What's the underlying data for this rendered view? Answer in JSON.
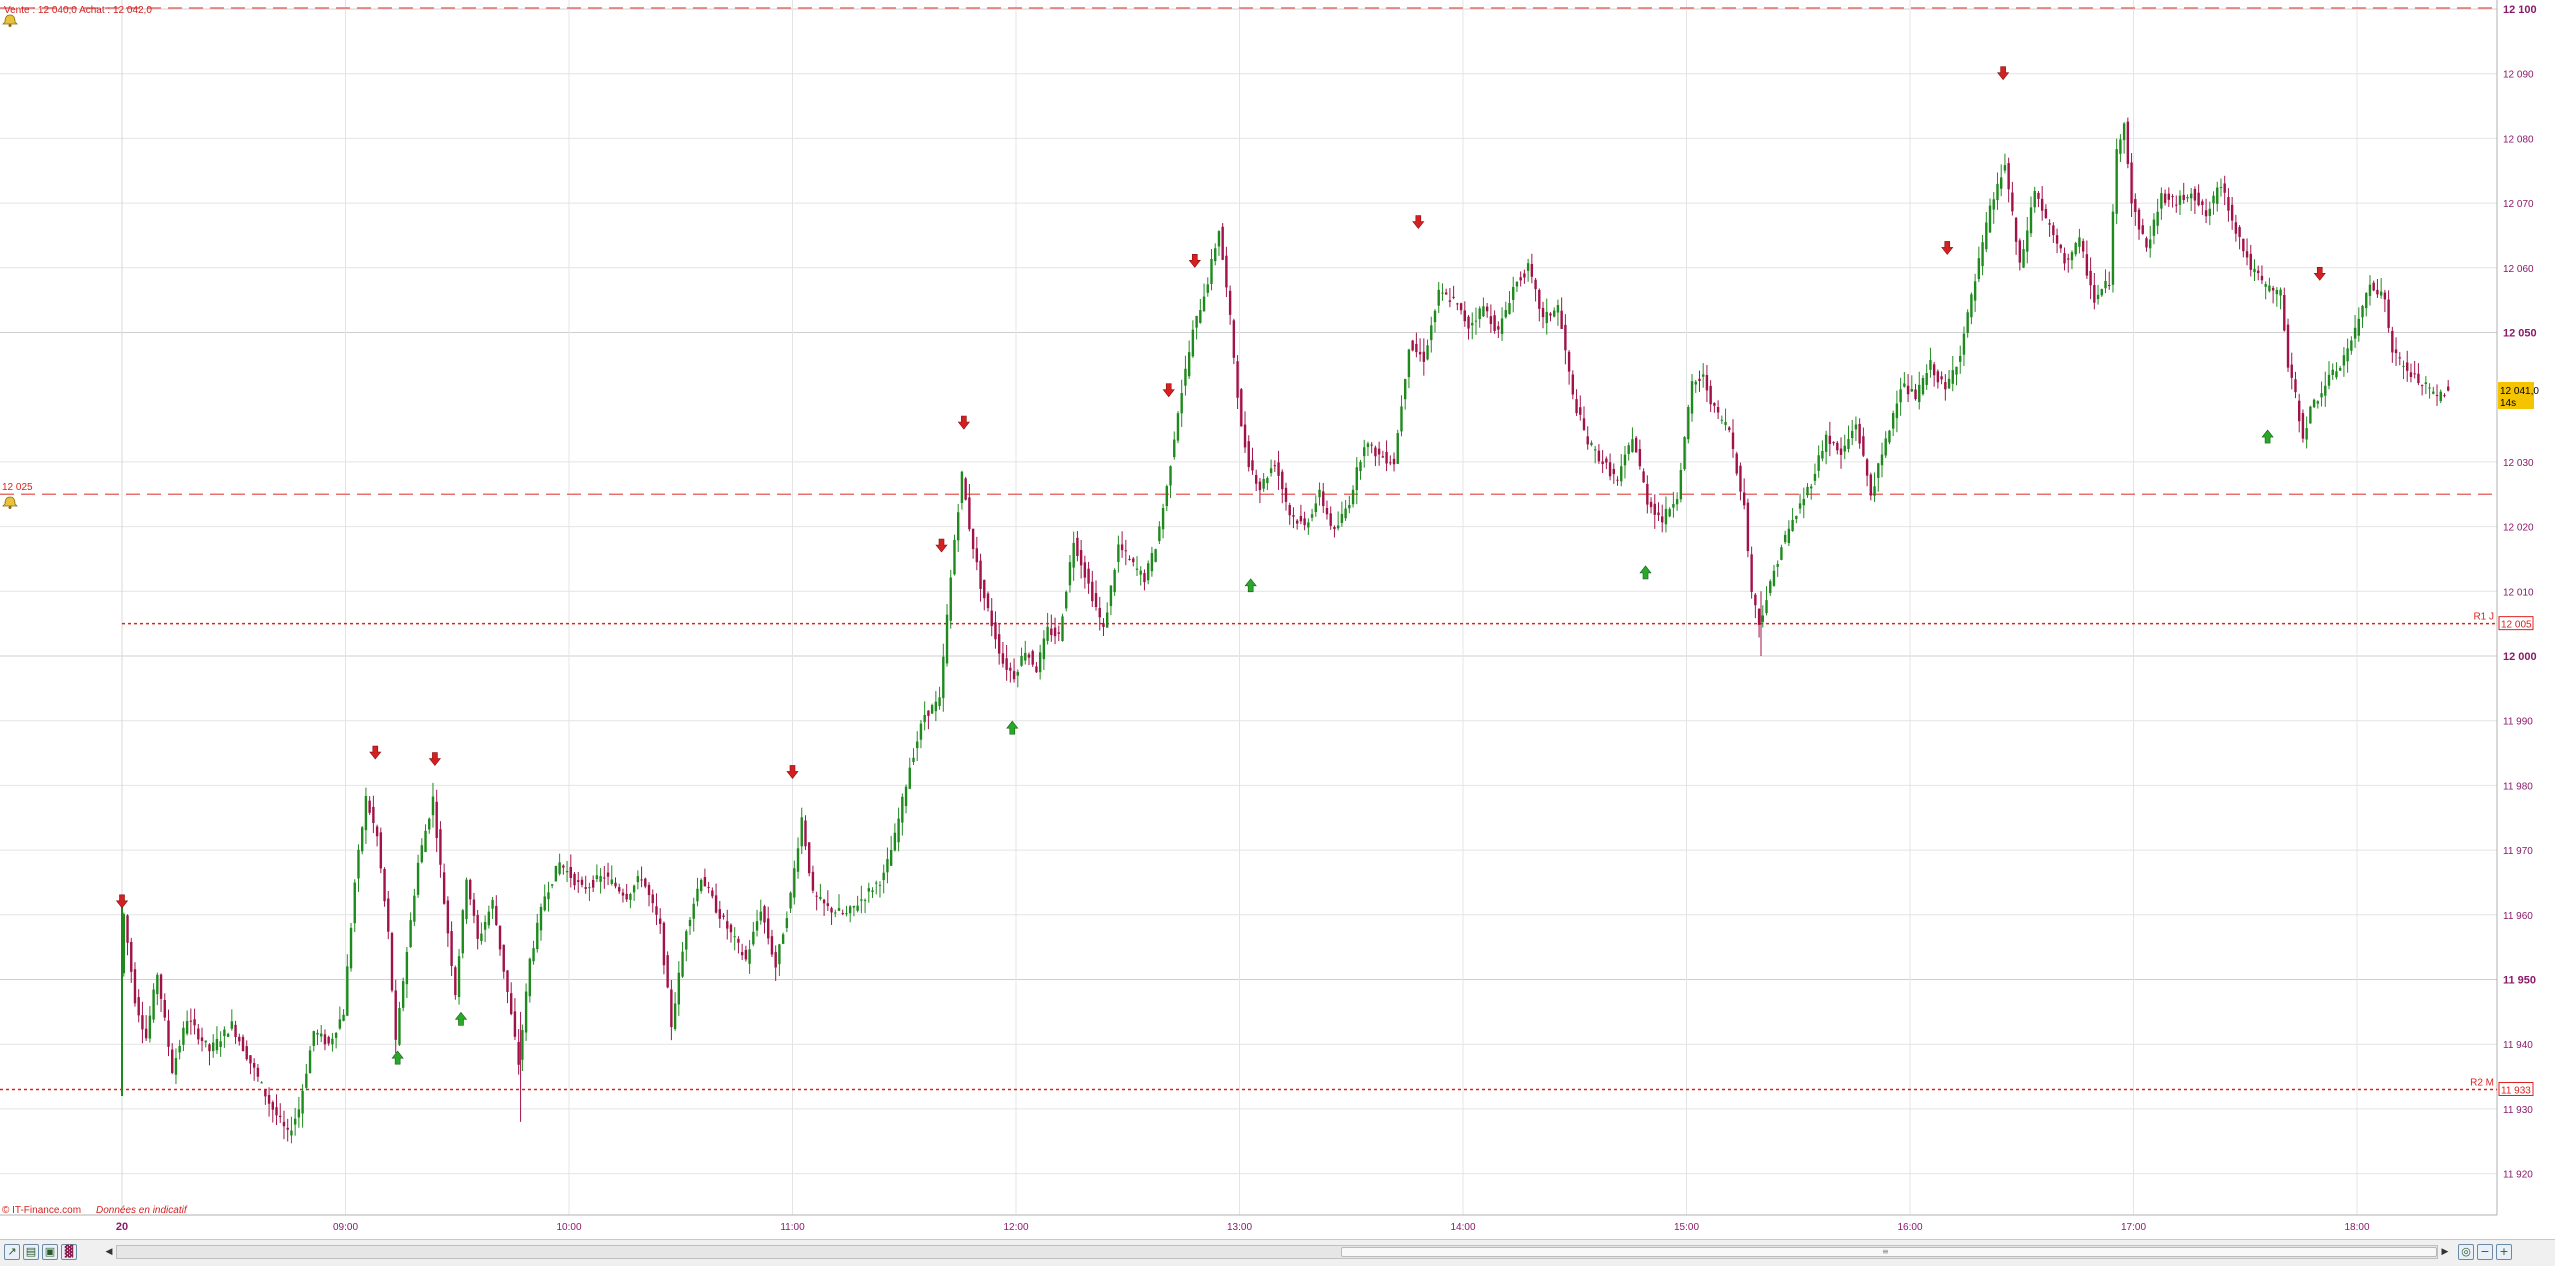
{
  "header": {
    "quote_text": "Vente : 12 040,0 Achat : 12 042,0"
  },
  "footer": {
    "source": "© IT-Finance.com",
    "note": "Données en indicatif"
  },
  "price_tag": {
    "value": "12 041,0",
    "countdown": "14s"
  },
  "alert_level": {
    "label": "12 025",
    "value": 12025
  },
  "levels": [
    {
      "name": "R1 J",
      "value": 12005,
      "tag": "12 005"
    },
    {
      "name": "R2 M",
      "value": 11933,
      "tag": "11 933"
    }
  ],
  "colors": {
    "up_candle": "#1e8a1e",
    "down_candle": "#a01248",
    "grid": "#e4e4e4",
    "axis_text": "#8b1a6b",
    "level_line": "#e0201c",
    "alert_line": "#e8706c",
    "arrow_sell": "#d42020",
    "arrow_buy": "#2aa82a",
    "price_tag_bg": "#f5c400"
  },
  "toolbar": {
    "icons": [
      "chart-type-icon",
      "save-icon",
      "print-icon",
      "indicators-icon"
    ],
    "zoom_icons": [
      "zoom-fit-icon",
      "zoom-out-icon",
      "zoom-in-icon"
    ]
  },
  "chart_data": {
    "type": "candlestick",
    "xlabel": "",
    "ylabel": "",
    "date_label": "20",
    "xlim": [
      "08:00",
      "18:40"
    ],
    "ylim": [
      11915,
      12100
    ],
    "grid": true,
    "x_ticks": [
      "09:00",
      "10:00",
      "11:00",
      "12:00",
      "13:00",
      "14:00",
      "15:00",
      "16:00",
      "17:00",
      "18:00"
    ],
    "y_ticks": [
      {
        "value": 12100,
        "label": "12 100",
        "major": true
      },
      {
        "value": 12090,
        "label": "12 090",
        "major": false
      },
      {
        "value": 12080,
        "label": "12 080",
        "major": false
      },
      {
        "value": 12070,
        "label": "12 070",
        "major": false
      },
      {
        "value": 12060,
        "label": "12 060",
        "major": false
      },
      {
        "value": 12050,
        "label": "12 050",
        "major": true
      },
      {
        "value": 12030,
        "label": "12 030",
        "major": false
      },
      {
        "value": 12020,
        "label": "12 020",
        "major": false
      },
      {
        "value": 12010,
        "label": "12 010",
        "major": false
      },
      {
        "value": 12000,
        "label": "12 000",
        "major": true
      },
      {
        "value": 11990,
        "label": "11 990",
        "major": false
      },
      {
        "value": 11980,
        "label": "11 980",
        "major": false
      },
      {
        "value": 11970,
        "label": "11 970",
        "major": false
      },
      {
        "value": 11960,
        "label": "11 960",
        "major": false
      },
      {
        "value": 11950,
        "label": "11 950",
        "major": true
      },
      {
        "value": 11940,
        "label": "11 940",
        "major": false
      },
      {
        "value": 11930,
        "label": "11 930",
        "major": false
      },
      {
        "value": 11920,
        "label": "11 920",
        "major": false
      }
    ],
    "price_path": [
      [
        "08:00",
        11951
      ],
      [
        "08:01",
        11960
      ],
      [
        "08:04",
        11947
      ],
      [
        "08:07",
        11941
      ],
      [
        "08:10",
        11951
      ],
      [
        "08:14",
        11936
      ],
      [
        "08:18",
        11944
      ],
      [
        "08:24",
        11939
      ],
      [
        "08:30",
        11943
      ],
      [
        "08:36",
        11936
      ],
      [
        "08:40",
        11931
      ],
      [
        "08:45",
        11926
      ],
      [
        "08:48",
        11930
      ],
      [
        "08:52",
        11942
      ],
      [
        "08:56",
        11940
      ],
      [
        "09:00",
        11945
      ],
      [
        "09:03",
        11965
      ],
      [
        "09:06",
        11978
      ],
      [
        "09:09",
        11972
      ],
      [
        "09:12",
        11957
      ],
      [
        "09:14",
        11940
      ],
      [
        "09:16",
        11950
      ],
      [
        "09:20",
        11968
      ],
      [
        "09:24",
        11978
      ],
      [
        "09:27",
        11962
      ],
      [
        "09:30",
        11948
      ],
      [
        "09:33",
        11966
      ],
      [
        "09:36",
        11956
      ],
      [
        "09:40",
        11962
      ],
      [
        "09:44",
        11948
      ],
      [
        "09:47",
        11937
      ],
      [
        "09:50",
        11953
      ],
      [
        "09:54",
        11963
      ],
      [
        "09:58",
        11968
      ],
      [
        "10:04",
        11964
      ],
      [
        "10:10",
        11966
      ],
      [
        "10:16",
        11963
      ],
      [
        "10:20",
        11966
      ],
      [
        "10:25",
        11958
      ],
      [
        "10:28",
        11943
      ],
      [
        "10:32",
        11958
      ],
      [
        "10:36",
        11966
      ],
      [
        "10:40",
        11961
      ],
      [
        "10:44",
        11957
      ],
      [
        "10:48",
        11953
      ],
      [
        "10:52",
        11961
      ],
      [
        "10:56",
        11952
      ],
      [
        "11:00",
        11963
      ],
      [
        "11:03",
        11975
      ],
      [
        "11:06",
        11963
      ],
      [
        "11:10",
        11961
      ],
      [
        "11:15",
        11960
      ],
      [
        "11:20",
        11963
      ],
      [
        "11:25",
        11966
      ],
      [
        "11:28",
        11972
      ],
      [
        "11:32",
        11983
      ],
      [
        "11:36",
        11991
      ],
      [
        "11:40",
        11993
      ],
      [
        "11:42",
        12006
      ],
      [
        "11:44",
        12018
      ],
      [
        "11:46",
        12028
      ],
      [
        "11:48",
        12020
      ],
      [
        "11:51",
        12011
      ],
      [
        "11:54",
        12005
      ],
      [
        "11:57",
        11999
      ],
      [
        "12:00",
        11997
      ],
      [
        "12:03",
        12001
      ],
      [
        "12:06",
        11998
      ],
      [
        "12:09",
        12004
      ],
      [
        "12:12",
        12003
      ],
      [
        "12:16",
        12018
      ],
      [
        "12:20",
        12011
      ],
      [
        "12:24",
        12004
      ],
      [
        "12:28",
        12017
      ],
      [
        "12:32",
        12014
      ],
      [
        "12:35",
        12012
      ],
      [
        "12:38",
        12017
      ],
      [
        "12:41",
        12026
      ],
      [
        "12:44",
        12038
      ],
      [
        "12:48",
        12050
      ],
      [
        "12:52",
        12058
      ],
      [
        "12:55",
        12066
      ],
      [
        "12:58",
        12052
      ],
      [
        "13:01",
        12035
      ],
      [
        "13:03",
        12030
      ],
      [
        "13:06",
        12026
      ],
      [
        "13:10",
        12030
      ],
      [
        "13:14",
        12022
      ],
      [
        "13:18",
        12020
      ],
      [
        "13:22",
        12025
      ],
      [
        "13:26",
        12019
      ],
      [
        "13:30",
        12024
      ],
      [
        "13:34",
        12033
      ],
      [
        "13:38",
        12031
      ],
      [
        "13:42",
        12030
      ],
      [
        "13:46",
        12048
      ],
      [
        "13:50",
        12046
      ],
      [
        "13:54",
        12056
      ],
      [
        "13:58",
        12055
      ],
      [
        "14:02",
        12051
      ],
      [
        "14:06",
        12054
      ],
      [
        "14:10",
        12050
      ],
      [
        "14:14",
        12057
      ],
      [
        "14:18",
        12060
      ],
      [
        "14:22",
        12052
      ],
      [
        "14:26",
        12054
      ],
      [
        "14:30",
        12040
      ],
      [
        "14:34",
        12033
      ],
      [
        "14:38",
        12030
      ],
      [
        "14:42",
        12027
      ],
      [
        "14:46",
        12034
      ],
      [
        "14:50",
        12024
      ],
      [
        "14:54",
        12021
      ],
      [
        "14:58",
        12025
      ],
      [
        "15:02",
        12042
      ],
      [
        "15:05",
        12043
      ],
      [
        "15:08",
        12038
      ],
      [
        "15:12",
        12035
      ],
      [
        "15:16",
        12023
      ],
      [
        "15:18",
        12010
      ],
      [
        "15:20",
        12005
      ],
      [
        "15:22",
        12009
      ],
      [
        "15:26",
        12017
      ],
      [
        "15:30",
        12022
      ],
      [
        "15:34",
        12027
      ],
      [
        "15:38",
        12034
      ],
      [
        "15:42",
        12031
      ],
      [
        "15:46",
        12036
      ],
      [
        "15:50",
        12025
      ],
      [
        "15:54",
        12033
      ],
      [
        "15:58",
        12042
      ],
      [
        "16:02",
        12040
      ],
      [
        "16:06",
        12045
      ],
      [
        "16:10",
        12041
      ],
      [
        "16:14",
        12047
      ],
      [
        "16:18",
        12058
      ],
      [
        "16:22",
        12069
      ],
      [
        "16:26",
        12076
      ],
      [
        "16:30",
        12060
      ],
      [
        "16:34",
        12072
      ],
      [
        "16:38",
        12066
      ],
      [
        "16:42",
        12061
      ],
      [
        "16:46",
        12064
      ],
      [
        "16:50",
        12055
      ],
      [
        "16:54",
        12058
      ],
      [
        "16:56",
        12078
      ],
      [
        "16:58",
        12083
      ],
      [
        "17:00",
        12070
      ],
      [
        "17:04",
        12063
      ],
      [
        "17:08",
        12071
      ],
      [
        "17:12",
        12070
      ],
      [
        "17:16",
        12072
      ],
      [
        "17:20",
        12068
      ],
      [
        "17:24",
        12073
      ],
      [
        "17:28",
        12066
      ],
      [
        "17:32",
        12060
      ],
      [
        "17:36",
        12057
      ],
      [
        "17:40",
        12056
      ],
      [
        "17:42",
        12045
      ],
      [
        "17:44",
        12040
      ],
      [
        "17:46",
        12034
      ],
      [
        "17:48",
        12038
      ],
      [
        "17:52",
        12042
      ],
      [
        "17:56",
        12045
      ],
      [
        "18:00",
        12050
      ],
      [
        "18:04",
        12058
      ],
      [
        "18:08",
        12055
      ],
      [
        "18:10",
        12047
      ],
      [
        "18:14",
        12044
      ],
      [
        "18:18",
        12042
      ],
      [
        "18:22",
        12040
      ],
      [
        "18:24",
        12041
      ]
    ],
    "signals": [
      {
        "time": "08:00",
        "type": "sell",
        "price": 11962
      },
      {
        "time": "09:08",
        "type": "sell",
        "price": 11985
      },
      {
        "time": "09:14",
        "type": "buy",
        "price": 11938
      },
      {
        "time": "09:24",
        "type": "sell",
        "price": 11984
      },
      {
        "time": "09:31",
        "type": "buy",
        "price": 11944
      },
      {
        "time": "11:00",
        "type": "sell",
        "price": 11982
      },
      {
        "time": "11:40",
        "type": "sell",
        "price": 12017
      },
      {
        "time": "11:46",
        "type": "sell",
        "price": 12036
      },
      {
        "time": "11:59",
        "type": "buy",
        "price": 11989
      },
      {
        "time": "12:41",
        "type": "sell",
        "price": 12041
      },
      {
        "time": "12:48",
        "type": "sell",
        "price": 12061
      },
      {
        "time": "13:03",
        "type": "buy",
        "price": 12011
      },
      {
        "time": "13:48",
        "type": "sell",
        "price": 12067
      },
      {
        "time": "14:49",
        "type": "buy",
        "price": 12013
      },
      {
        "time": "16:10",
        "type": "sell",
        "price": 12063
      },
      {
        "time": "16:25",
        "type": "sell",
        "price": 12090
      },
      {
        "time": "17:36",
        "type": "buy",
        "price": 12034
      },
      {
        "time": "17:50",
        "type": "sell",
        "price": 12059
      }
    ]
  }
}
